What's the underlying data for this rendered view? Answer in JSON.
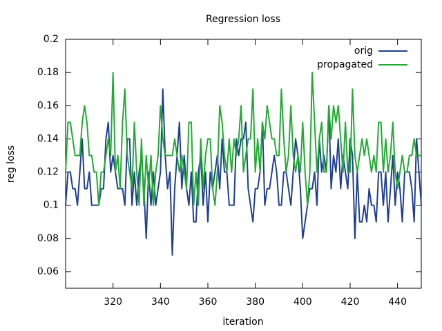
{
  "chart_data": {
    "type": "line",
    "title": "Regression loss",
    "x_label": "iteration",
    "y_label": "reg loss",
    "x": [
      300,
      301,
      302,
      303,
      304,
      305,
      306,
      307,
      308,
      309,
      310,
      311,
      312,
      313,
      314,
      315,
      316,
      317,
      318,
      319,
      320,
      321,
      322,
      323,
      324,
      325,
      326,
      327,
      328,
      329,
      330,
      331,
      332,
      333,
      334,
      335,
      336,
      337,
      338,
      339,
      340,
      341,
      342,
      343,
      344,
      345,
      346,
      347,
      348,
      349,
      350,
      351,
      352,
      353,
      354,
      355,
      356,
      357,
      358,
      359,
      360,
      361,
      362,
      363,
      364,
      365,
      366,
      367,
      368,
      369,
      370,
      371,
      372,
      373,
      374,
      375,
      376,
      377,
      378,
      379,
      380,
      381,
      382,
      383,
      384,
      385,
      386,
      387,
      388,
      389,
      390,
      391,
      392,
      393,
      394,
      395,
      396,
      397,
      398,
      399,
      400,
      401,
      402,
      403,
      404,
      405,
      406,
      407,
      408,
      409,
      410,
      411,
      412,
      413,
      414,
      415,
      416,
      417,
      418,
      419,
      420,
      421,
      422,
      423,
      424,
      425,
      426,
      427,
      428,
      429,
      430,
      431,
      432,
      433,
      434,
      435,
      436,
      437,
      438,
      439,
      440,
      441,
      442,
      443,
      444,
      445,
      446,
      447,
      448,
      449,
      450
    ],
    "series": [
      {
        "name": "orig",
        "color": "#1f3f93",
        "values": [
          0.1,
          0.12,
          0.12,
          0.11,
          0.11,
          0.1,
          0.12,
          0.14,
          0.11,
          0.11,
          0.12,
          0.1,
          0.1,
          0.1,
          0.1,
          0.11,
          0.11,
          0.14,
          0.15,
          0.12,
          0.13,
          0.12,
          0.11,
          0.11,
          0.11,
          0.1,
          0.14,
          0.14,
          0.1,
          0.12,
          0.1,
          0.12,
          0.13,
          0.11,
          0.08,
          0.12,
          0.1,
          0.12,
          0.1,
          0.11,
          0.12,
          0.17,
          0.13,
          0.11,
          0.12,
          0.07,
          0.11,
          0.13,
          0.15,
          0.11,
          0.13,
          0.11,
          0.1,
          0.12,
          0.09,
          0.09,
          0.12,
          0.13,
          0.1,
          0.12,
          0.09,
          0.12,
          0.11,
          0.12,
          0.13,
          0.11,
          0.14,
          0.12,
          0.12,
          0.1,
          0.1,
          0.1,
          0.14,
          0.13,
          0.14,
          0.14,
          0.15,
          0.11,
          0.1,
          0.09,
          0.11,
          0.11,
          0.12,
          0.15,
          0.1,
          0.11,
          0.11,
          0.12,
          0.13,
          0.12,
          0.1,
          0.1,
          0.12,
          0.12,
          0.11,
          0.1,
          0.12,
          0.14,
          0.13,
          0.11,
          0.08,
          0.09,
          0.1,
          0.11,
          0.11,
          0.12,
          0.1,
          0.14,
          0.12,
          0.13,
          0.12,
          0.16,
          0.11,
          0.13,
          0.12,
          0.14,
          0.11,
          0.13,
          0.12,
          0.11,
          0.14,
          0.13,
          0.08,
          0.12,
          0.09,
          0.09,
          0.1,
          0.09,
          0.11,
          0.1,
          0.1,
          0.09,
          0.12,
          0.12,
          0.1,
          0.12,
          0.09,
          0.11,
          0.13,
          0.1,
          0.12,
          0.11,
          0.09,
          0.12,
          0.12,
          0.12,
          0.11,
          0.09,
          0.14,
          0.12,
          0.1
        ]
      },
      {
        "name": "propagated",
        "color": "#22aa33",
        "values": [
          0.12,
          0.15,
          0.15,
          0.14,
          0.13,
          0.13,
          0.13,
          0.15,
          0.16,
          0.15,
          0.13,
          0.13,
          0.12,
          0.12,
          0.1,
          0.12,
          0.12,
          0.13,
          0.14,
          0.13,
          0.18,
          0.12,
          0.13,
          0.11,
          0.15,
          0.17,
          0.13,
          0.12,
          0.11,
          0.15,
          0.12,
          0.1,
          0.14,
          0.1,
          0.13,
          0.11,
          0.13,
          0.1,
          0.12,
          0.13,
          0.16,
          0.14,
          0.13,
          0.13,
          0.13,
          0.13,
          0.14,
          0.13,
          0.12,
          0.13,
          0.12,
          0.11,
          0.15,
          0.15,
          0.1,
          0.12,
          0.1,
          0.14,
          0.11,
          0.13,
          0.14,
          0.14,
          0.11,
          0.1,
          0.12,
          0.16,
          0.15,
          0.13,
          0.12,
          0.14,
          0.12,
          0.14,
          0.13,
          0.14,
          0.16,
          0.12,
          0.13,
          0.14,
          0.14,
          0.17,
          0.12,
          0.14,
          0.12,
          0.15,
          0.14,
          0.16,
          0.15,
          0.14,
          0.14,
          0.13,
          0.13,
          0.17,
          0.14,
          0.12,
          0.13,
          0.16,
          0.13,
          0.12,
          0.13,
          0.12,
          0.15,
          0.12,
          0.1,
          0.12,
          0.18,
          0.15,
          0.12,
          0.14,
          0.15,
          0.12,
          0.12,
          0.16,
          0.14,
          0.16,
          0.15,
          0.16,
          0.14,
          0.12,
          0.15,
          0.12,
          0.12,
          0.17,
          0.13,
          0.12,
          0.13,
          0.14,
          0.13,
          0.14,
          0.13,
          0.12,
          0.13,
          0.12,
          0.15,
          0.15,
          0.12,
          0.14,
          0.12,
          0.13,
          0.15,
          0.12,
          0.11,
          0.12,
          0.13,
          0.12,
          0.12,
          0.13,
          0.13,
          0.14,
          0.13,
          0.13,
          0.13
        ]
      }
    ],
    "xlim": [
      300,
      450
    ],
    "xticks": [
      320,
      340,
      360,
      380,
      400,
      420,
      440
    ],
    "ylim": [
      0.05,
      0.2
    ],
    "yticks": [
      0.06,
      0.08,
      0.1,
      0.12,
      0.14,
      0.16,
      0.18,
      0.2
    ],
    "grid": false,
    "legend_position": "top-right"
  }
}
